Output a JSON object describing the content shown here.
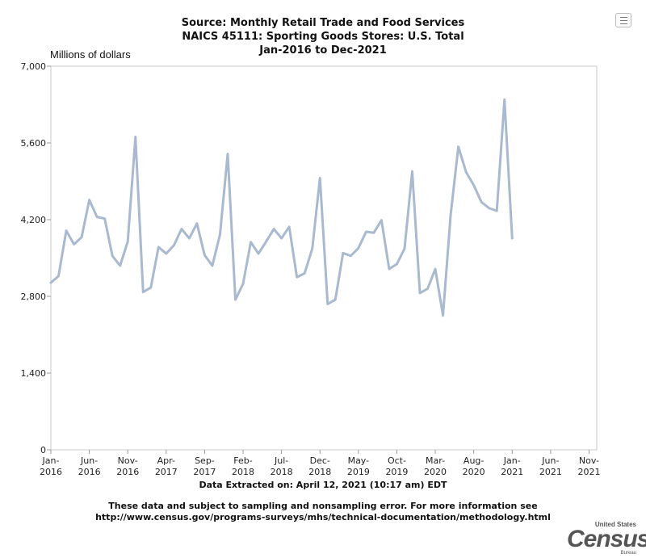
{
  "title_lines": [
    "Source: Monthly Retail Trade and Food Services",
    "NAICS 45111: Sporting Goods Stores: U.S. Total",
    "Jan-2016 to Dec-2021"
  ],
  "footer": {
    "extracted": "Data Extracted on: April 12, 2021 (10:17 am) EDT",
    "note_line1": "These data and subject to sampling and nonsampling error. For more information see",
    "note_line2": "http://www.census.gov/programs-surveys/mhs/technical-documentation/methodology.html"
  },
  "logo": {
    "top": "United States",
    "main": "Census",
    "bottom": "Bureau"
  },
  "menu_icon": "hamburger-menu-icon",
  "chart_data": {
    "type": "line",
    "ylabel": "Millions of dollars",
    "ylim": [
      0,
      7000
    ],
    "yticks": [
      0,
      1400,
      2800,
      4200,
      5600,
      7000
    ],
    "ytick_labels": [
      "0",
      "1,400",
      "2,800",
      "4,200",
      "5,600",
      "7,000"
    ],
    "xticks": [
      {
        "label": [
          "Jan-",
          "2016"
        ],
        "index": 0
      },
      {
        "label": [
          "Jun-",
          "2016"
        ],
        "index": 5
      },
      {
        "label": [
          "Nov-",
          "2016"
        ],
        "index": 10
      },
      {
        "label": [
          "Apr-",
          "2017"
        ],
        "index": 15
      },
      {
        "label": [
          "Sep-",
          "2017"
        ],
        "index": 20
      },
      {
        "label": [
          "Feb-",
          "2018"
        ],
        "index": 25
      },
      {
        "label": [
          "Jul-",
          "2018"
        ],
        "index": 30
      },
      {
        "label": [
          "Dec-",
          "2018"
        ],
        "index": 35
      },
      {
        "label": [
          "May-",
          "2019"
        ],
        "index": 40
      },
      {
        "label": [
          "Oct-",
          "2019"
        ],
        "index": 45
      },
      {
        "label": [
          "Mar-",
          "2020"
        ],
        "index": 50
      },
      {
        "label": [
          "Aug-",
          "2020"
        ],
        "index": 55
      },
      {
        "label": [
          "Jan-",
          "2021"
        ],
        "index": 60
      },
      {
        "label": [
          "Jun-",
          "2021"
        ],
        "index": 65
      },
      {
        "label": [
          "Nov-",
          "2021"
        ],
        "index": 70
      }
    ],
    "x_start": "Jan-2016",
    "x_end": "Dec-2021",
    "line_color": "#a9b9cf",
    "grid": false,
    "series": [
      {
        "values": [
          3050,
          3170,
          4000,
          3750,
          3880,
          4560,
          4250,
          4220,
          3540,
          3360,
          3800,
          5710,
          2880,
          2960,
          3700,
          3580,
          3730,
          4030,
          3860,
          4130,
          3550,
          3360,
          3930,
          5400,
          2740,
          3030,
          3790,
          3580,
          3800,
          4030,
          3860,
          4070,
          3150,
          3220,
          3670,
          4960,
          2660,
          2740,
          3590,
          3540,
          3680,
          3980,
          3960,
          4190,
          3300,
          3390,
          3670,
          5080,
          2860,
          2940,
          3300,
          2450,
          4290,
          5530,
          5070,
          4830,
          4520,
          4410,
          4360,
          6390,
          3860
        ]
      }
    ]
  }
}
